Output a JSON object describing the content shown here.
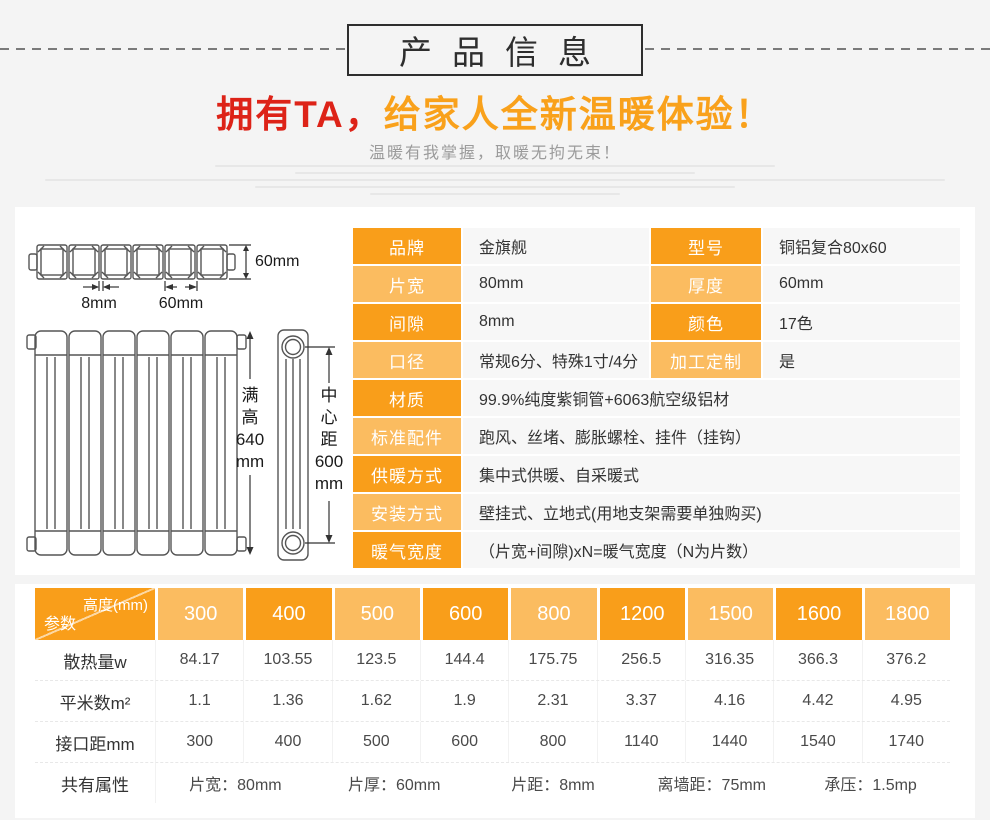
{
  "header": {
    "title": "产品信息",
    "headline": {
      "red": "拥有TA，",
      "orange": "给家人全新温暖体验！"
    },
    "subtitle": "温暖有我掌握，取暖无拘无束！"
  },
  "colors": {
    "orange_dark": "#f99e1a",
    "orange_light": "#fbbc60",
    "headline_red": "#dd2318",
    "headline_orange": "#f9a11b",
    "value_cell_bg": "#f7f7f7",
    "page_bg": "#f4f4f4"
  },
  "diagram": {
    "top_height_label": "60mm",
    "gap_label": "8mm",
    "section_width_label": "60mm",
    "full_height_lines": [
      "满",
      "高",
      "640",
      "mm"
    ],
    "center_distance_lines": [
      "中",
      "心",
      "距",
      "600",
      "mm"
    ]
  },
  "spec_table": {
    "rows": [
      {
        "shade": "dark",
        "cells": [
          {
            "label": "品牌",
            "value": "金旗舰"
          },
          {
            "label": "型号",
            "value": "铜铝复合80x60"
          }
        ]
      },
      {
        "shade": "light",
        "cells": [
          {
            "label": "片宽",
            "value": "80mm"
          },
          {
            "label": "厚度",
            "value": "60mm"
          }
        ]
      },
      {
        "shade": "dark",
        "cells": [
          {
            "label": "间隙",
            "value": "8mm"
          },
          {
            "label": "颜色",
            "value": "17色"
          }
        ]
      },
      {
        "shade": "light",
        "cells": [
          {
            "label": "口径",
            "value": "常规6分、特殊1寸/4分"
          },
          {
            "label": "加工定制",
            "value": "是"
          }
        ]
      },
      {
        "shade": "dark",
        "cells": [
          {
            "label": "材质",
            "value": "99.9%纯度紫铜管+6063航空级铝材"
          }
        ]
      },
      {
        "shade": "light",
        "cells": [
          {
            "label": "标准配件",
            "value": "跑风、丝堵、膨胀螺栓、挂件（挂钩）"
          }
        ]
      },
      {
        "shade": "dark",
        "cells": [
          {
            "label": "供暖方式",
            "value": "集中式供暖、自采暖式"
          }
        ]
      },
      {
        "shade": "light",
        "cells": [
          {
            "label": "安装方式",
            "value": "壁挂式、立地式(用地支架需要单独购买)"
          }
        ]
      },
      {
        "shade": "dark",
        "cells": [
          {
            "label": "暖气宽度",
            "value": "（片宽+间隙)xN=暖气宽度（N为片数）"
          }
        ]
      }
    ]
  },
  "size_table": {
    "corner": {
      "top": "高度(mm)",
      "bottom": "参数"
    },
    "heights": [
      "300",
      "400",
      "500",
      "600",
      "800",
      "1200",
      "1500",
      "1600",
      "1800"
    ],
    "rows": [
      {
        "label": "散热量w",
        "values": [
          "84.17",
          "103.55",
          "123.5",
          "144.4",
          "175.75",
          "256.5",
          "316.35",
          "366.3",
          "376.2"
        ]
      },
      {
        "label": "平米数m²",
        "values": [
          "1.1",
          "1.36",
          "1.62",
          "1.9",
          "2.31",
          "3.37",
          "4.16",
          "4.42",
          "4.95"
        ]
      },
      {
        "label": "接口距mm",
        "values": [
          "300",
          "400",
          "500",
          "600",
          "800",
          "1140",
          "1440",
          "1540",
          "1740"
        ]
      }
    ],
    "common_row": {
      "label": "共有属性",
      "items": [
        "片宽：80mm",
        "片厚：60mm",
        "片距：8mm",
        "离墙距：75mm",
        "承压：1.5mp"
      ]
    }
  }
}
